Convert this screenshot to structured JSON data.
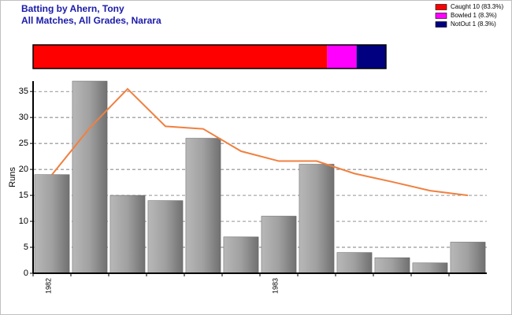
{
  "header": {
    "title": "Batting by Ahern, Tony",
    "subtitle": "All Matches, All Grades, Narara"
  },
  "chart_data": [
    {
      "type": "stacked-hbar",
      "categories": [
        "Caught 10 (83.3%)",
        "Bowled 1 (8.3%)",
        "NotOut 1 (8.3%)"
      ],
      "values": [
        10,
        1,
        1
      ],
      "colors": [
        "#ff0000",
        "#ff00ff",
        "#000080"
      ]
    },
    {
      "type": "bar-line",
      "ylabel": "Runs",
      "categories": [
        "1982",
        null,
        null,
        null,
        null,
        null,
        "1983",
        null,
        null,
        null,
        null,
        null
      ],
      "series": [
        {
          "type": "bar",
          "color": "#a0a0a0",
          "values": [
            19,
            37,
            15,
            14,
            26,
            7,
            11,
            21,
            4,
            3,
            2,
            6
          ]
        },
        {
          "type": "line",
          "color": "#f08040",
          "values": [
            19,
            28,
            35.5,
            28.3,
            27.8,
            23.5,
            21.6,
            21.6,
            19.2,
            17.6,
            15.9,
            15
          ]
        }
      ],
      "ylim": [
        0,
        37
      ],
      "yticks": [
        0,
        5,
        10,
        15,
        20,
        25,
        30,
        35
      ],
      "grid": true
    }
  ]
}
